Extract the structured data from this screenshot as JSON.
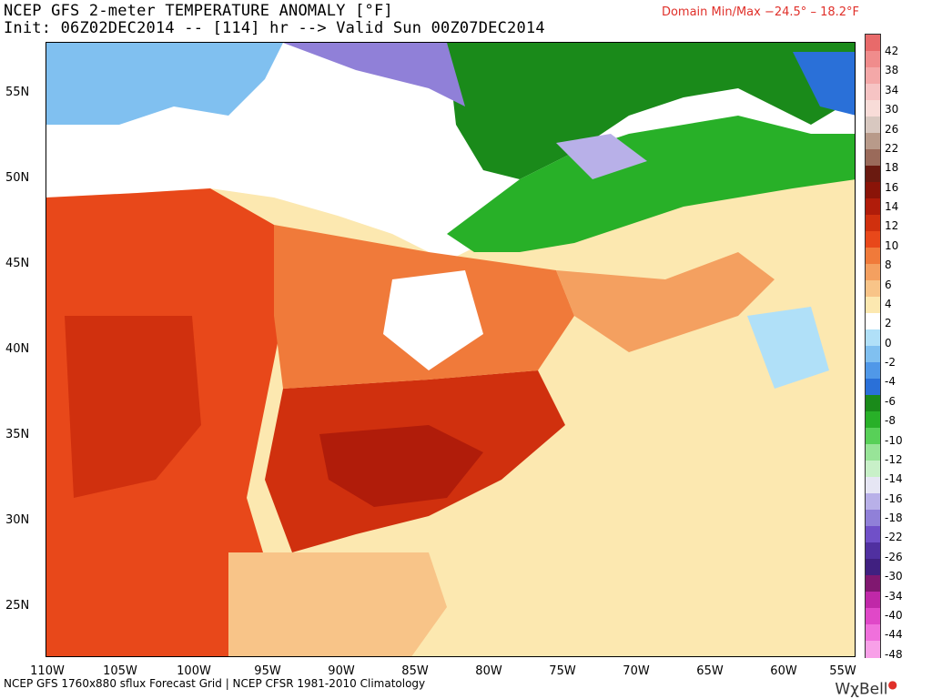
{
  "header": {
    "title": "NCEP GFS 2-meter TEMPERATURE ANOMALY [°F]",
    "init": "Init: 06Z02DEC2014 -- [114] hr --> Valid Sun 00Z07DEC2014",
    "domain": "Domain Min/Max −24.5°  –  18.2°F"
  },
  "map": {
    "lat_labels": [
      "55N",
      "50N",
      "45N",
      "40N",
      "35N",
      "30N",
      "25N"
    ],
    "lon_labels": [
      "110W",
      "105W",
      "100W",
      "95W",
      "90W",
      "85W",
      "80W",
      "75W",
      "70W",
      "65W",
      "60W",
      "55W"
    ]
  },
  "footer": {
    "source": "NCEP GFS 1760x880 sflux Forecast Grid | NCEP CFSR 1981-2010 Climatology",
    "logo": "WχBell"
  },
  "legend": {
    "labels": [
      "42",
      "38",
      "34",
      "30",
      "26",
      "22",
      "18",
      "16",
      "14",
      "12",
      "10",
      "8",
      "6",
      "4",
      "2",
      "0",
      "-2",
      "-4",
      "-6",
      "-8",
      "-10",
      "-12",
      "-14",
      "-16",
      "-18",
      "-22",
      "-26",
      "-30",
      "-34",
      "-40",
      "-44",
      "-48"
    ],
    "colors": [
      "#e86a6a",
      "#f08c8c",
      "#f4a8a8",
      "#f6c4c4",
      "#f8dcd8",
      "#d8c8c0",
      "#b89a8a",
      "#9a6a5a",
      "#6a1a10",
      "#8a1408",
      "#b01c0a",
      "#d0300e",
      "#e8481a",
      "#f07a3a",
      "#f4a060",
      "#f8c488",
      "#fce8b0",
      "#ffffff",
      "#b0e0f8",
      "#80c0f0",
      "#5098e8",
      "#2a70d8",
      "#1a8a1a",
      "#28b028",
      "#58d058",
      "#98e498",
      "#c8f0c8",
      "#e6e6f4",
      "#b8b0e8",
      "#9080d8",
      "#7050c8",
      "#5030a0",
      "#402080",
      "#801870",
      "#c028a8",
      "#e048c8",
      "#f070dc",
      "#f8a0e8"
    ]
  }
}
